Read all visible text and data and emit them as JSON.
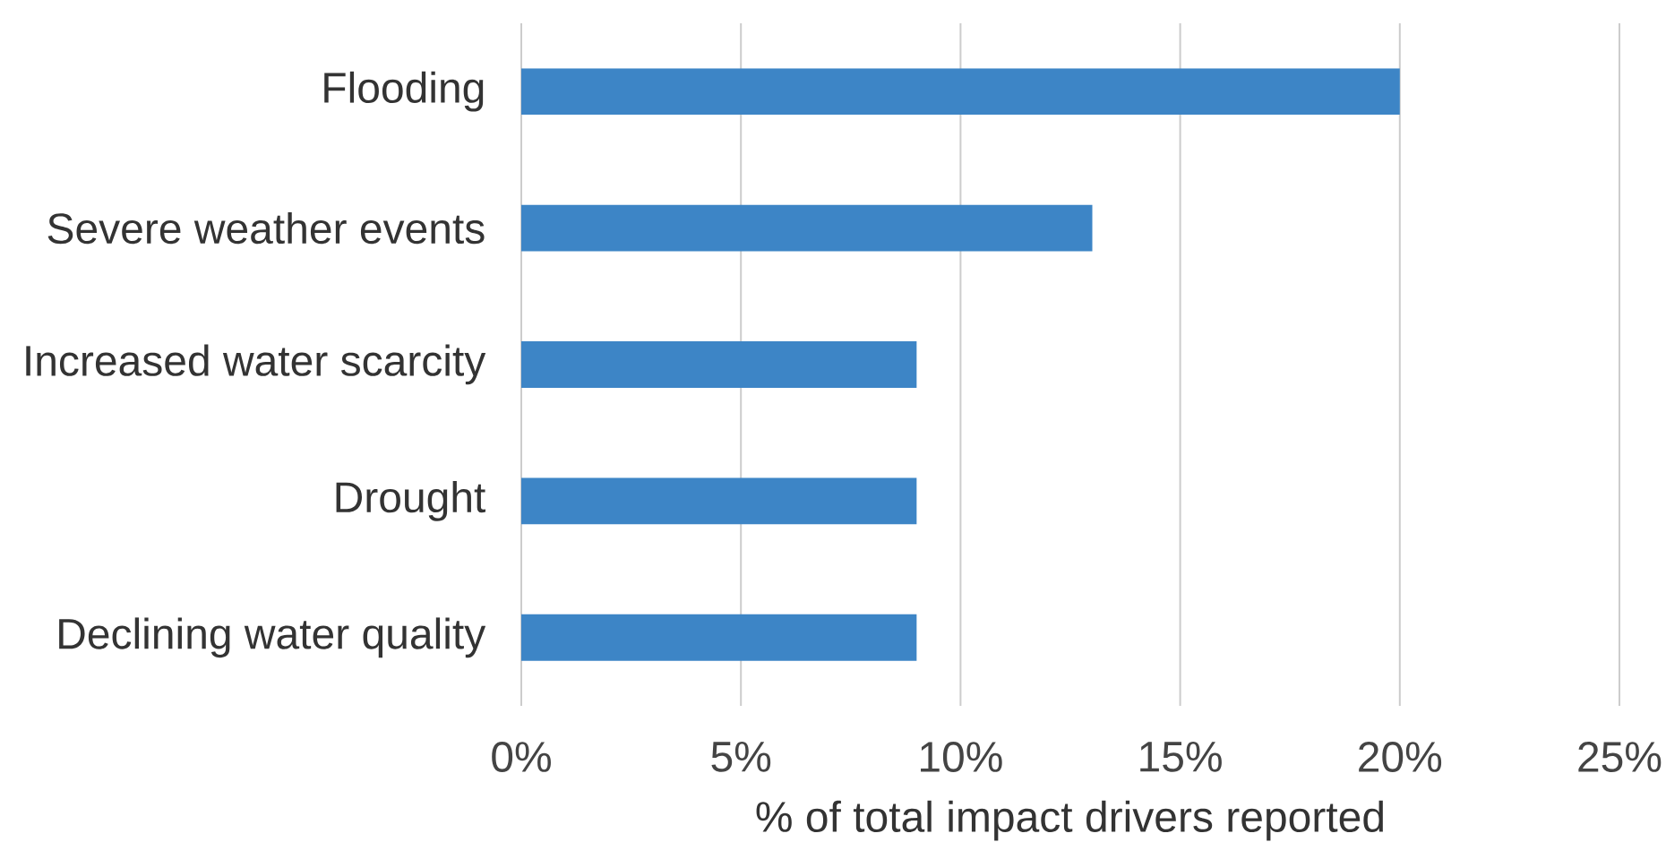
{
  "chart_data": {
    "type": "bar",
    "orientation": "horizontal",
    "categories": [
      "Flooding",
      "Severe weather events",
      "Increased water scarcity",
      "Drought",
      "Declining water quality"
    ],
    "values": [
      20,
      13,
      9,
      9,
      9
    ],
    "color": "#3d85c6",
    "xlabel": "% of total impact drivers reported",
    "xlim": [
      0,
      25
    ],
    "xticks": [
      {
        "value": 0,
        "label": "0%"
      },
      {
        "value": 5,
        "label": "5%"
      },
      {
        "value": 10,
        "label": "10%"
      },
      {
        "value": 15,
        "label": "15%"
      },
      {
        "value": 20,
        "label": "20%"
      },
      {
        "value": 25,
        "label": "25%"
      }
    ],
    "grid": "x"
  }
}
